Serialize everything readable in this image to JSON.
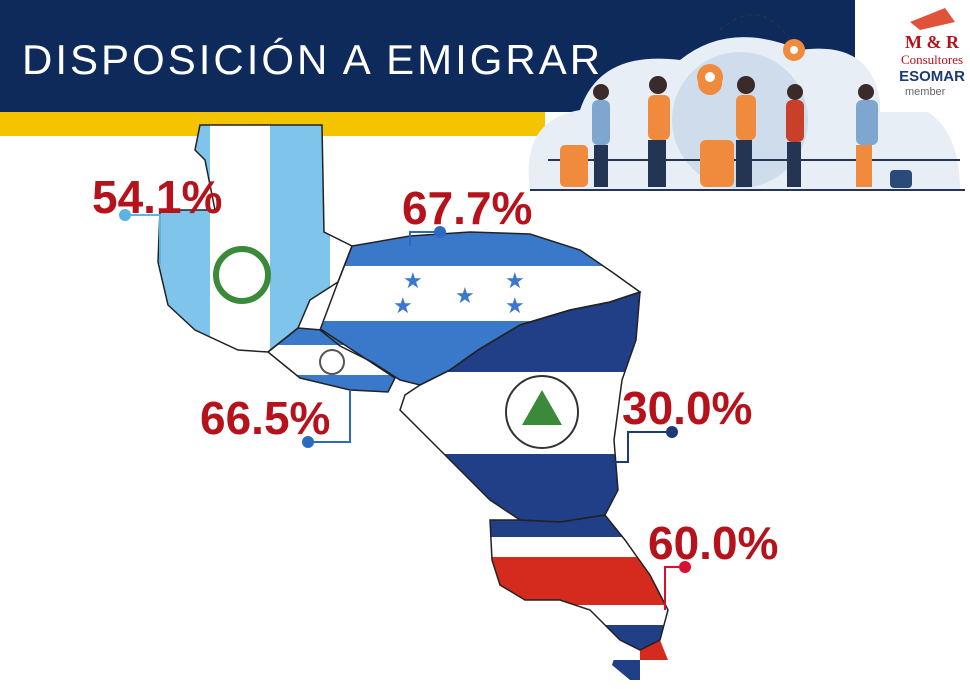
{
  "header": {
    "title": "DISPOSICIÓN A EMIGRAR"
  },
  "logo": {
    "brand": "M & R",
    "sub": "Consultores",
    "association": "ESOMAR",
    "status": "member"
  },
  "callouts": [
    {
      "label": "54.1%"
    },
    {
      "label": "67.7%"
    },
    {
      "label": "66.5%"
    },
    {
      "label": "30.0%"
    },
    {
      "label": "60.0%"
    }
  ]
}
